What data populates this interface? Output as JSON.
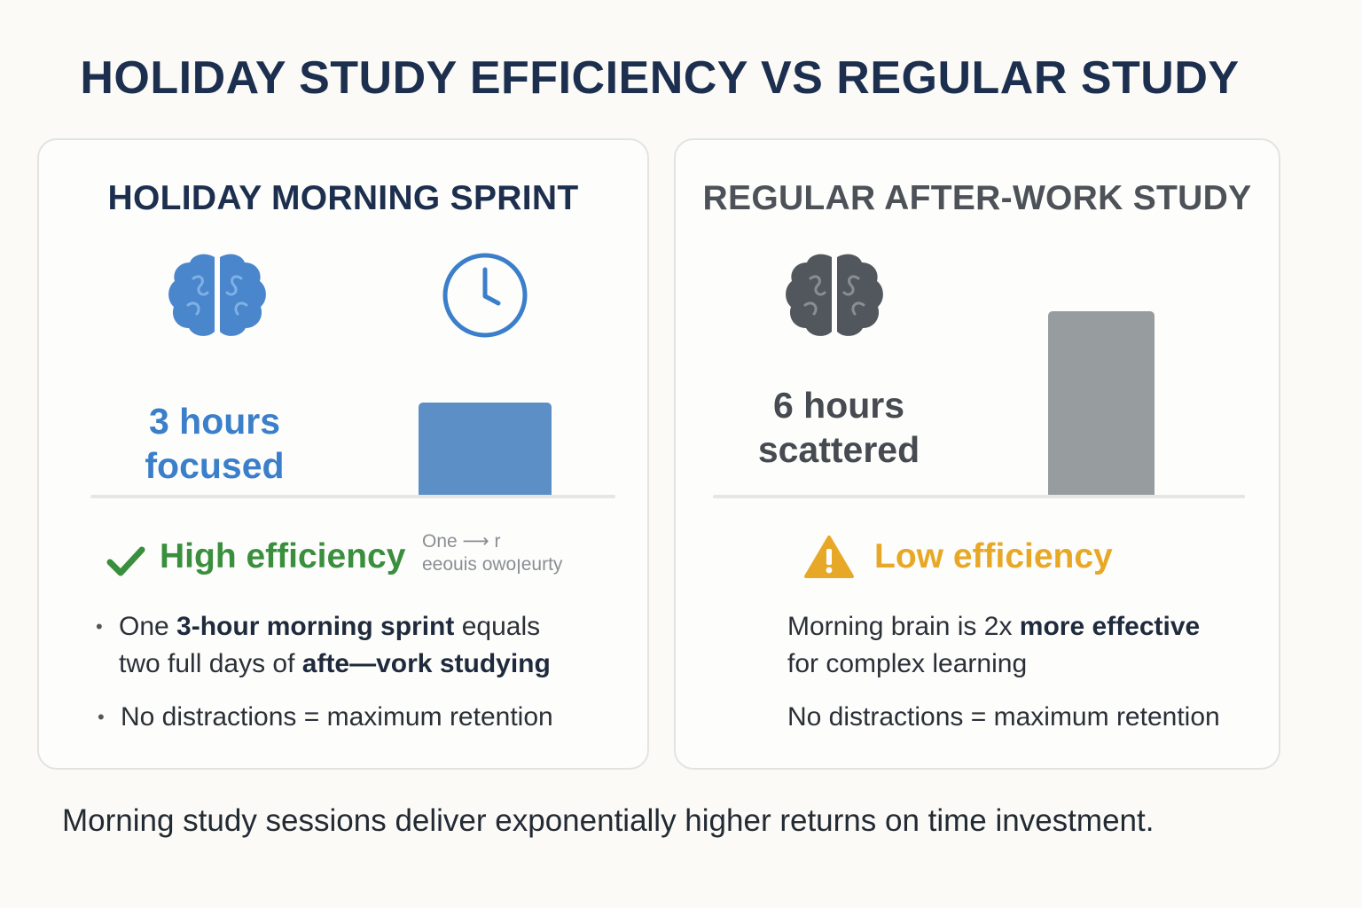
{
  "title": "HOLIDAY STUDY EFFICIENCY VS REGULAR STUDY",
  "left_panel": {
    "title": "HOLIDAY MORNING SPRINT",
    "icons": [
      "brain-icon",
      "clock-icon"
    ],
    "hours_line1": "3 hours",
    "hours_line2": "focused",
    "hours_value": 3,
    "status": "High efficiency",
    "status_icon": "checkmark-icon",
    "faint_note_line1": "One ⟶ r",
    "faint_note_line2": "eeouis owoןeurty",
    "bullet1_pre": "One ",
    "bullet1_bold": "3-hour morning sprint",
    "bullet1_post": " equals",
    "bullet1_line2_pre": "two full days of ",
    "bullet1_line2_bold": "afte—vork studying",
    "bullet2": "No distractions = maximum retention",
    "color": "#4a86cc"
  },
  "right_panel": {
    "title": "REGULAR AFTER-WORK STUDY",
    "icons": [
      "brain-icon"
    ],
    "hours_line1": "6 hours",
    "hours_line2": "scattered",
    "hours_value": 6,
    "status": "Low efficiency",
    "status_icon": "warning-icon",
    "line1_pre": "Morning brain is 2x ",
    "line1_bold": "more effective",
    "line2": "for complex learning",
    "line3": "No distractions = maximum retention",
    "color": "#9a9ea1"
  },
  "footer": "Morning study sessions deliver exponentially higher returns on time investment.",
  "colors": {
    "navy": "#1d2f4f",
    "blue": "#3b7ec9",
    "green": "#3a8f3e",
    "amber": "#e8a827",
    "gray_dark": "#4c5258"
  }
}
